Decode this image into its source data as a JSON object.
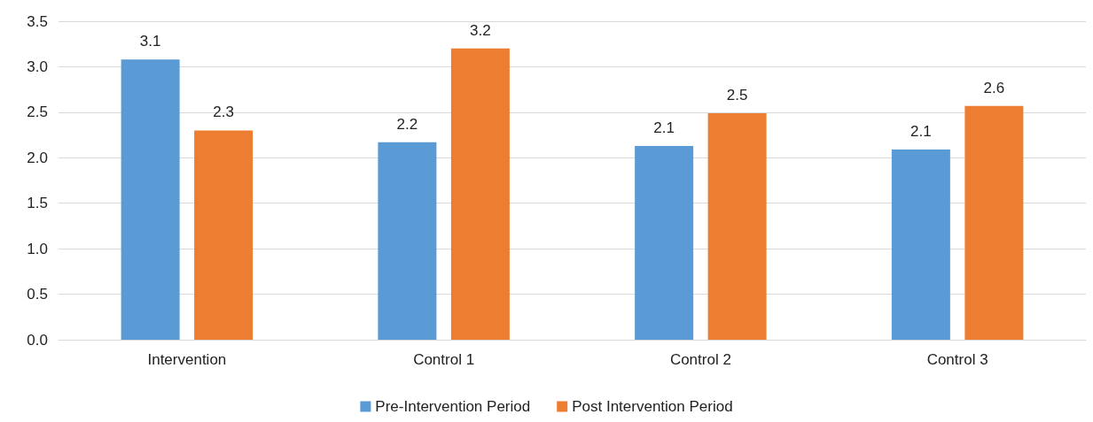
{
  "chart_data": {
    "type": "bar",
    "categories": [
      "Intervention",
      "Control 1",
      "Control 2",
      "Control 3"
    ],
    "series": [
      {
        "name": "Pre-Intervention Period",
        "color": "#5b9bd5",
        "values": [
          3.08,
          2.17,
          2.13,
          2.09
        ],
        "value_labels": [
          "3.1",
          "2.2",
          "2.1",
          "2.1"
        ]
      },
      {
        "name": "Post Intervention Period",
        "color": "#ed7d31",
        "values": [
          2.3,
          3.2,
          2.49,
          2.57
        ],
        "value_labels": [
          "2.3",
          "3.2",
          "2.5",
          "2.6"
        ]
      }
    ],
    "ylim": [
      0,
      3.5
    ],
    "yticks": [
      {
        "value": 0,
        "label": "0.0"
      },
      {
        "value": 0.5,
        "label": "0.5"
      },
      {
        "value": 1,
        "label": "1.0"
      },
      {
        "value": 1.5,
        "label": "1.5"
      },
      {
        "value": 2,
        "label": "2.0"
      },
      {
        "value": 2.5,
        "label": "2.5"
      },
      {
        "value": 3,
        "label": "3.0"
      },
      {
        "value": 3.5,
        "label": "3.5"
      }
    ],
    "grid": "y",
    "legend": "bottom"
  }
}
